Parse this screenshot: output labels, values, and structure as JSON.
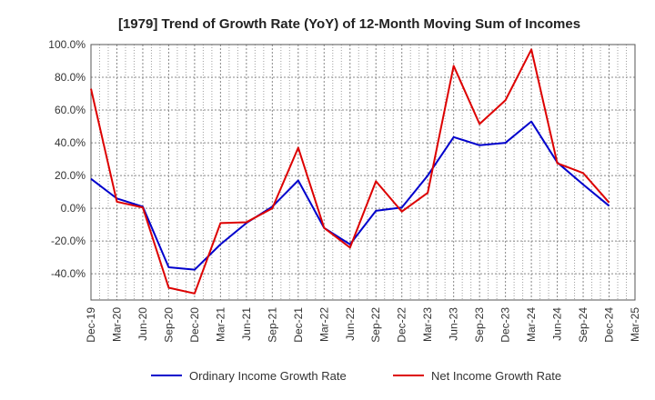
{
  "chart_data": {
    "type": "line",
    "title": "[1979]  Trend of Growth Rate (YoY) of 12-Month Moving Sum of Incomes",
    "xlabel": "",
    "ylabel": "",
    "categories": [
      "Dec-19",
      "Mar-20",
      "Jun-20",
      "Sep-20",
      "Dec-20",
      "Mar-21",
      "Jun-21",
      "Sep-21",
      "Dec-21",
      "Mar-22",
      "Jun-22",
      "Sep-22",
      "Dec-22",
      "Mar-23",
      "Jun-23",
      "Sep-23",
      "Dec-23",
      "Mar-24",
      "Jun-24",
      "Sep-24",
      "Dec-24",
      "Mar-25"
    ],
    "yticks": [
      "100.0%",
      "80.0%",
      "60.0%",
      "40.0%",
      "20.0%",
      "0.0%",
      "-20.0%",
      "-40.0%"
    ],
    "ylim": [
      -56,
      100
    ],
    "grid": true,
    "legend_position": "bottom",
    "series": [
      {
        "name": "Ordinary Income Growth Rate",
        "color": "#0000cc",
        "values": [
          18.0,
          6.0,
          1.0,
          -36.0,
          -37.5,
          -22.0,
          -9.0,
          1.0,
          17.0,
          -12.0,
          -22.0,
          -1.5,
          0.5,
          20.0,
          43.5,
          38.5,
          40.0,
          53.0,
          28.0,
          14.5,
          1.5,
          null
        ]
      },
      {
        "name": "Net Income Growth Rate",
        "color": "#dd0000",
        "values": [
          73.0,
          4.0,
          0.5,
          -48.5,
          -52.0,
          -9.0,
          -8.5,
          0.0,
          37.0,
          -12.0,
          -24.0,
          16.5,
          -2.0,
          9.5,
          87.0,
          51.5,
          66.0,
          97.0,
          27.5,
          21.5,
          3.5,
          null
        ]
      }
    ]
  }
}
